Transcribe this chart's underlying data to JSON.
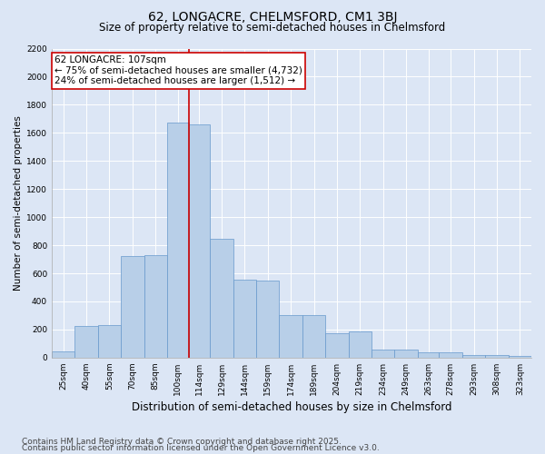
{
  "title": "62, LONGACRE, CHELMSFORD, CM1 3BJ",
  "subtitle": "Size of property relative to semi-detached houses in Chelmsford",
  "xlabel": "Distribution of semi-detached houses by size in Chelmsford",
  "ylabel": "Number of semi-detached properties",
  "categories": [
    "25sqm",
    "40sqm",
    "55sqm",
    "70sqm",
    "85sqm",
    "100sqm",
    "114sqm",
    "129sqm",
    "144sqm",
    "159sqm",
    "174sqm",
    "189sqm",
    "204sqm",
    "219sqm",
    "234sqm",
    "249sqm",
    "263sqm",
    "278sqm",
    "293sqm",
    "308sqm",
    "323sqm"
  ],
  "values": [
    45,
    225,
    230,
    725,
    730,
    1675,
    1660,
    845,
    555,
    550,
    300,
    300,
    175,
    185,
    60,
    60,
    35,
    35,
    20,
    20,
    10
  ],
  "bin_edges": [
    18,
    33,
    48,
    63,
    78,
    93,
    107,
    121,
    136,
    151,
    166,
    181,
    196,
    211,
    226,
    241,
    256,
    270,
    285,
    300,
    315,
    330
  ],
  "bar_color": "#b8cfe8",
  "bar_edgecolor": "#6699cc",
  "annotation_text": "62 LONGACRE: 107sqm\n← 75% of semi-detached houses are smaller (4,732)\n24% of semi-detached houses are larger (1,512) →",
  "annotation_box_color": "#ffffff",
  "annotation_box_edgecolor": "#cc0000",
  "vline_x_idx": 6,
  "vline_color": "#cc0000",
  "ylim": [
    0,
    2200
  ],
  "yticks": [
    0,
    200,
    400,
    600,
    800,
    1000,
    1200,
    1400,
    1600,
    1800,
    2000,
    2200
  ],
  "bg_color": "#dce6f5",
  "plot_bg_color": "#dce6f5",
  "footer_line1": "Contains HM Land Registry data © Crown copyright and database right 2025.",
  "footer_line2": "Contains public sector information licensed under the Open Government Licence v3.0.",
  "title_fontsize": 10,
  "subtitle_fontsize": 8.5,
  "xlabel_fontsize": 8.5,
  "ylabel_fontsize": 7.5,
  "tick_fontsize": 6.5,
  "footer_fontsize": 6.5,
  "annotation_fontsize": 7.5
}
